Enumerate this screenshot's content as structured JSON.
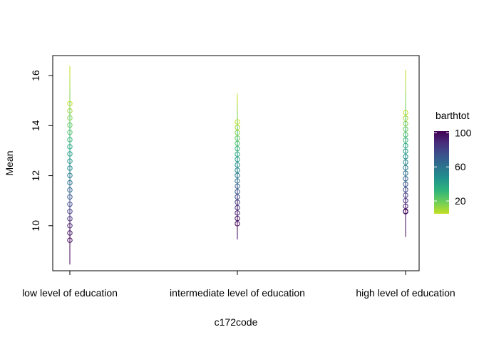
{
  "chart_data": {
    "type": "scatter",
    "title": "",
    "xlabel": "c172code",
    "ylabel": "Mean",
    "categories": [
      "low level of education",
      "intermediate level of education",
      "high level of education"
    ],
    "ylim": [
      8.2,
      16.8
    ],
    "yticks": [
      10,
      12,
      14,
      16
    ],
    "grid": false,
    "legend": {
      "title": "barthtot",
      "position": "right",
      "ticks": [
        20,
        60,
        100
      ],
      "range": [
        5,
        102
      ],
      "colors": [
        "#c2df23",
        "#6ccd5a",
        "#2eb37c",
        "#21918c",
        "#2c728e",
        "#3b528b",
        "#472d7b",
        "#440154"
      ]
    },
    "series": [
      {
        "category": "low level of education",
        "barthtot": [
          5,
          10,
          15,
          20,
          25,
          30,
          35,
          40,
          45,
          50,
          55,
          60,
          65,
          70,
          75,
          80,
          85,
          90,
          95,
          100
        ],
        "mean": [
          14.88,
          14.59,
          14.31,
          14.02,
          13.73,
          13.44,
          13.16,
          12.87,
          12.58,
          12.3,
          12.01,
          11.72,
          11.43,
          11.15,
          10.86,
          10.57,
          10.28,
          10.0,
          9.71,
          9.42
        ],
        "lower": [
          13.4,
          13.3,
          13.2,
          13.1,
          12.95,
          12.8,
          12.62,
          12.42,
          12.2,
          11.95,
          11.68,
          11.4,
          11.1,
          10.78,
          10.45,
          10.1,
          9.7,
          9.3,
          8.9,
          8.45
        ],
        "upper": [
          16.38,
          15.9,
          15.45,
          15.0,
          14.55,
          14.1,
          13.7,
          13.3,
          12.95,
          12.62,
          12.32,
          12.02,
          11.75,
          11.5,
          11.25,
          11.02,
          10.8,
          10.6,
          10.4,
          10.25
        ]
      },
      {
        "category": "intermediate level of education",
        "barthtot": [
          5,
          10,
          15,
          20,
          25,
          30,
          35,
          40,
          45,
          50,
          55,
          60,
          65,
          70,
          75,
          80,
          85,
          90,
          95,
          100
        ],
        "mean": [
          14.15,
          13.93,
          13.72,
          13.5,
          13.29,
          13.08,
          12.86,
          12.65,
          12.43,
          12.22,
          12.01,
          11.79,
          11.58,
          11.36,
          11.15,
          10.94,
          10.72,
          10.51,
          10.29,
          10.08
        ],
        "lower": [
          13.1,
          12.98,
          12.85,
          12.72,
          12.58,
          12.42,
          12.25,
          12.07,
          11.88,
          11.68,
          11.47,
          11.25,
          11.02,
          10.78,
          10.53,
          10.27,
          10.0,
          9.73,
          9.45,
          9.5
        ],
        "upper": [
          15.28,
          14.95,
          14.62,
          14.32,
          14.03,
          13.76,
          13.5,
          13.25,
          13.02,
          12.8,
          12.58,
          12.37,
          12.17,
          11.97,
          11.78,
          11.6,
          11.43,
          11.27,
          11.12,
          10.98
        ]
      },
      {
        "category": "high level of education",
        "barthtot": [
          5,
          10,
          15,
          20,
          25,
          30,
          35,
          40,
          45,
          50,
          55,
          60,
          65,
          70,
          75,
          80,
          85,
          90,
          95,
          100
        ],
        "mean": [
          14.52,
          14.3,
          14.08,
          13.86,
          13.64,
          13.42,
          13.2,
          12.98,
          12.76,
          12.54,
          12.32,
          12.1,
          11.88,
          11.66,
          11.44,
          11.22,
          11.0,
          10.78,
          10.56,
          10.58
        ],
        "lower": [
          13.0,
          12.9,
          12.8,
          12.7,
          12.58,
          12.45,
          12.3,
          12.13,
          11.95,
          11.75,
          11.53,
          11.3,
          11.05,
          10.78,
          10.5,
          10.2,
          9.9,
          9.6,
          9.58,
          9.55
        ],
        "upper": [
          16.23,
          15.75,
          15.3,
          14.9,
          14.52,
          14.17,
          13.85,
          13.55,
          13.27,
          13.0,
          12.75,
          12.52,
          12.3,
          12.1,
          11.9,
          11.72,
          11.55,
          11.4,
          11.25,
          11.12
        ]
      }
    ]
  }
}
